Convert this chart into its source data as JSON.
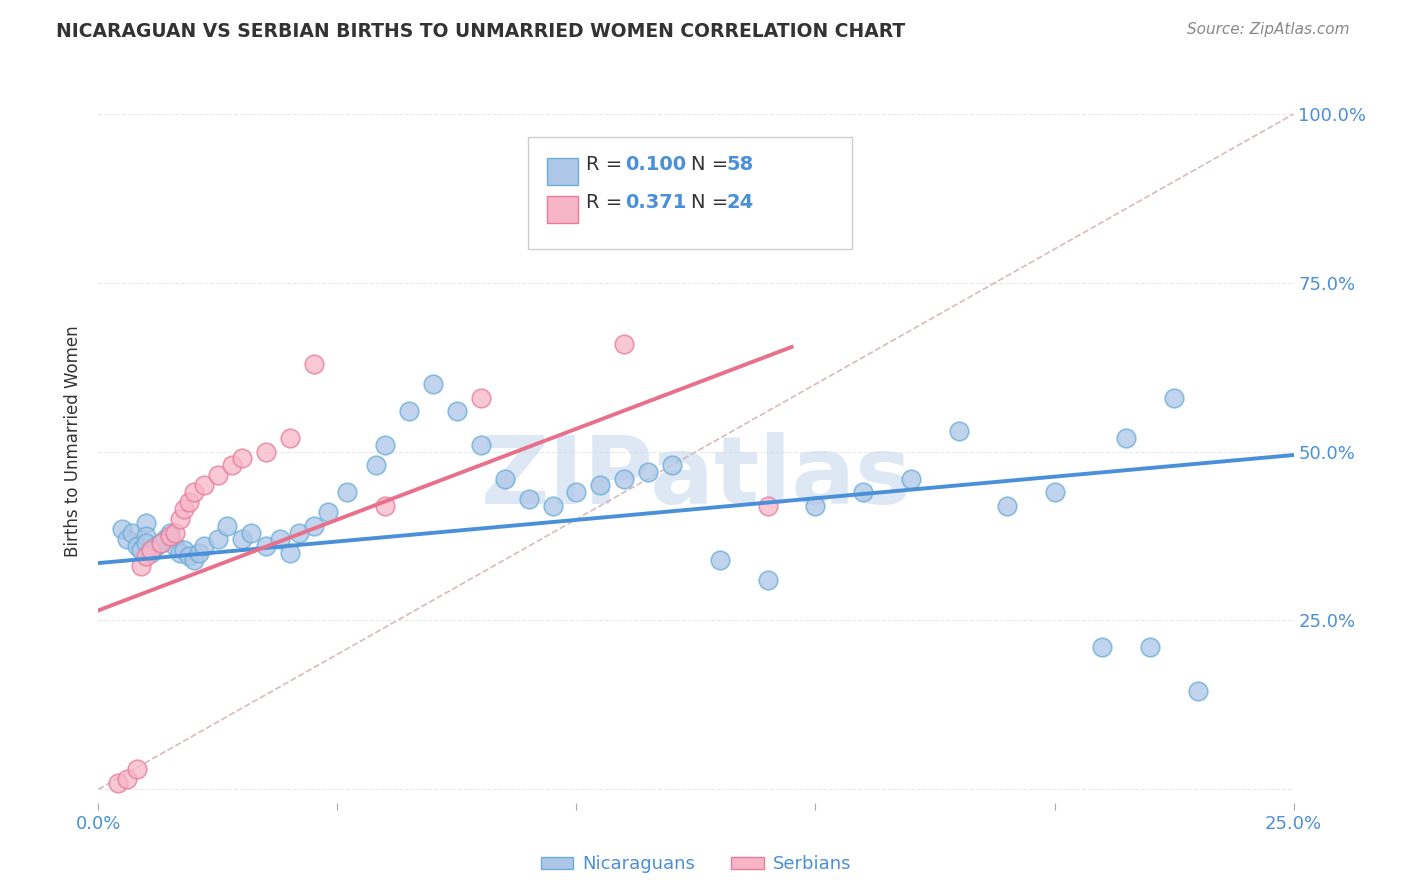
{
  "title": "NICARAGUAN VS SERBIAN BIRTHS TO UNMARRIED WOMEN CORRELATION CHART",
  "source": "Source: ZipAtlas.com",
  "ylabel": "Births to Unmarried Women",
  "xlim": [
    0.0,
    0.25
  ],
  "ylim": [
    -0.02,
    1.05
  ],
  "blue_color": "#aec6e8",
  "blue_edge_color": "#6aaed6",
  "pink_color": "#f7b6c8",
  "pink_edge_color": "#e87a9a",
  "blue_line_color": "#4a90d9",
  "pink_line_color": "#e8708a",
  "ref_line_color": "#ccaaaa",
  "grid_color": "#e8e8e8",
  "watermark": "ZIPatlas",
  "watermark_color": "#c8d8ee",
  "blue_scatter_x": [
    0.005,
    0.006,
    0.007,
    0.008,
    0.009,
    0.01,
    0.01,
    0.01,
    0.011,
    0.012,
    0.013,
    0.014,
    0.015,
    0.016,
    0.017,
    0.018,
    0.019,
    0.02,
    0.021,
    0.022,
    0.025,
    0.027,
    0.03,
    0.032,
    0.035,
    0.038,
    0.04,
    0.042,
    0.045,
    0.048,
    0.052,
    0.058,
    0.06,
    0.065,
    0.07,
    0.075,
    0.08,
    0.085,
    0.09,
    0.095,
    0.1,
    0.105,
    0.11,
    0.115,
    0.12,
    0.13,
    0.14,
    0.15,
    0.16,
    0.17,
    0.18,
    0.19,
    0.2,
    0.21,
    0.215,
    0.22,
    0.225,
    0.23
  ],
  "blue_scatter_y": [
    0.385,
    0.37,
    0.38,
    0.36,
    0.355,
    0.395,
    0.375,
    0.365,
    0.35,
    0.36,
    0.365,
    0.37,
    0.38,
    0.36,
    0.35,
    0.355,
    0.345,
    0.34,
    0.35,
    0.36,
    0.37,
    0.39,
    0.37,
    0.38,
    0.36,
    0.37,
    0.35,
    0.38,
    0.39,
    0.41,
    0.44,
    0.48,
    0.51,
    0.56,
    0.6,
    0.56,
    0.51,
    0.46,
    0.43,
    0.42,
    0.44,
    0.45,
    0.46,
    0.47,
    0.48,
    0.34,
    0.31,
    0.42,
    0.44,
    0.46,
    0.53,
    0.42,
    0.44,
    0.21,
    0.52,
    0.21,
    0.58,
    0.145
  ],
  "pink_scatter_x": [
    0.004,
    0.006,
    0.008,
    0.009,
    0.01,
    0.011,
    0.013,
    0.015,
    0.016,
    0.017,
    0.018,
    0.019,
    0.02,
    0.022,
    0.025,
    0.028,
    0.03,
    0.035,
    0.04,
    0.045,
    0.06,
    0.08,
    0.11,
    0.14
  ],
  "pink_scatter_y": [
    0.01,
    0.015,
    0.03,
    0.33,
    0.345,
    0.355,
    0.365,
    0.375,
    0.38,
    0.4,
    0.415,
    0.425,
    0.44,
    0.45,
    0.465,
    0.48,
    0.49,
    0.5,
    0.52,
    0.63,
    0.42,
    0.58,
    0.66,
    0.42
  ],
  "blue_trend_x": [
    0.0,
    0.25
  ],
  "blue_trend_y": [
    0.335,
    0.495
  ],
  "pink_trend_x": [
    0.0,
    0.145
  ],
  "pink_trend_y": [
    0.265,
    0.655
  ],
  "ref_line_x": [
    0.0,
    0.25
  ],
  "ref_line_y": [
    0.0,
    1.0
  ]
}
